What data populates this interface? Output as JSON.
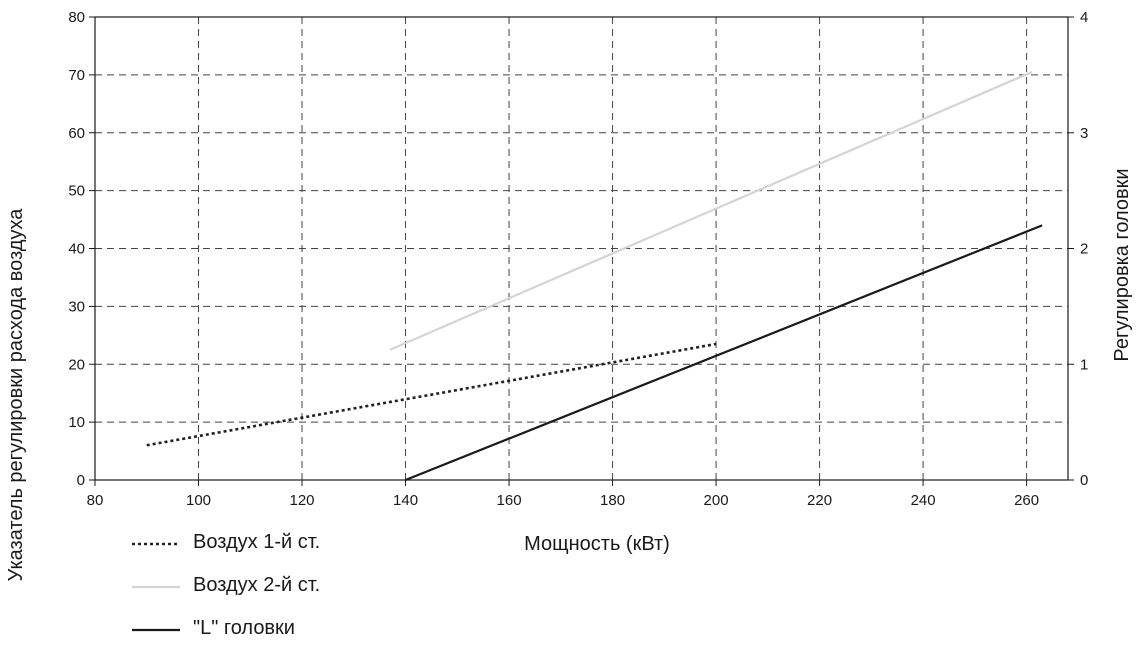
{
  "chart_data": {
    "type": "line",
    "xlabel": "Мощность (кВт)",
    "ylabel": "Указатель регулировки расхода воздуха",
    "y2label": "Регулировка головки",
    "xlim": [
      80,
      268
    ],
    "ylim": [
      0,
      80
    ],
    "y2lim": [
      0,
      4
    ],
    "x_ticks": [
      "80",
      "100",
      "120",
      "140",
      "160",
      "180",
      "200",
      "220",
      "240",
      "260"
    ],
    "y_ticks": [
      "0",
      "10",
      "20",
      "30",
      "40",
      "50",
      "60",
      "70",
      "80"
    ],
    "y2_ticks": [
      "0",
      "1",
      "2",
      "3",
      "4"
    ],
    "grid": true,
    "legend_position": "bottom-left",
    "series": [
      {
        "name": "Воздух 1-й ст.",
        "axis": "left",
        "style": "dotted",
        "color": "#222222",
        "x": [
          90,
          200
        ],
        "y": [
          6,
          23.5
        ]
      },
      {
        "name": "Воздух 2-й ст.",
        "axis": "left",
        "style": "solid",
        "color": "#d4d4d4",
        "x": [
          137,
          261
        ],
        "y": [
          22.5,
          70.5
        ]
      },
      {
        "name": "\"L\" головки",
        "axis": "right",
        "style": "solid",
        "color": "#1a1a1a",
        "x": [
          140,
          263
        ],
        "y": [
          0,
          2.2
        ]
      }
    ]
  }
}
